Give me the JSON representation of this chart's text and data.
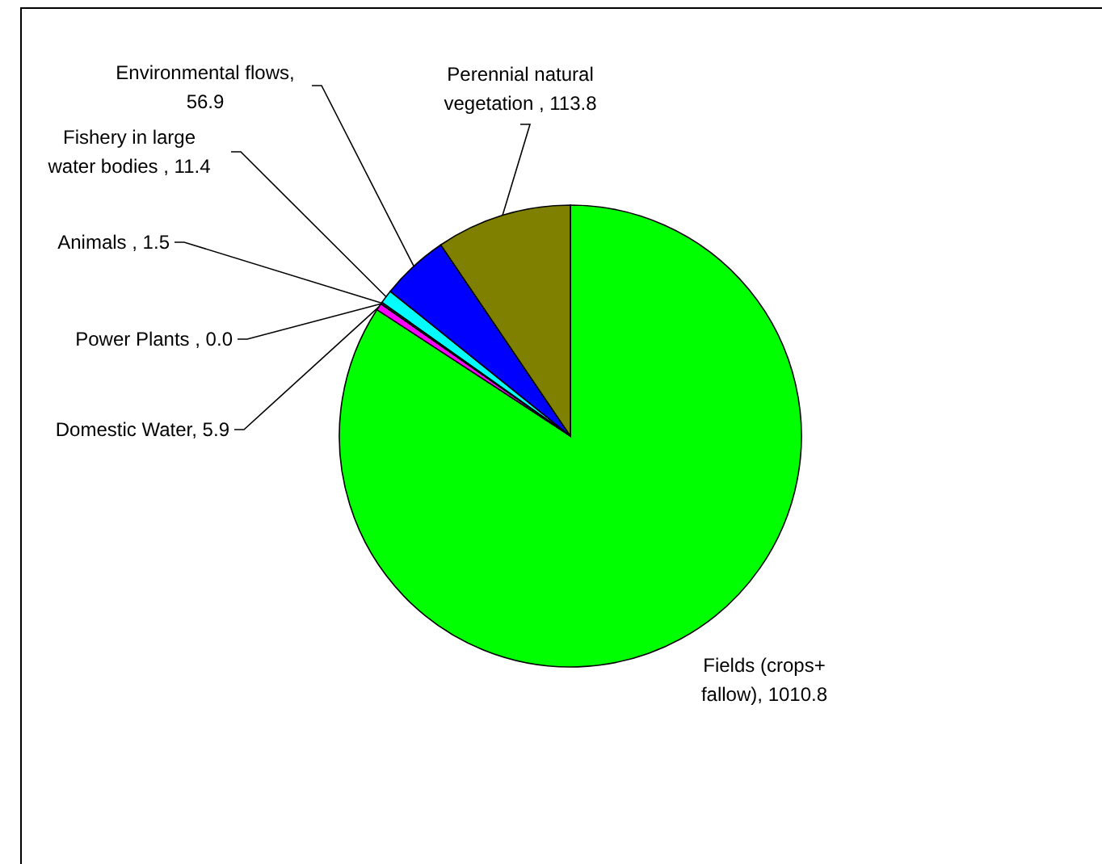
{
  "chart_data": {
    "type": "pie",
    "categories": [
      "Fields (crops+ fallow)",
      "Domestic Water",
      "Power Plants ",
      "Animals ",
      "Fishery in large water bodies ",
      "Environmental flows",
      "Perennial natural vegetation "
    ],
    "values": [
      1010.8,
      5.9,
      0.0,
      1.5,
      11.4,
      56.9,
      113.8
    ],
    "value_labels": [
      ", 1010.8",
      ", 5.9",
      ", 0.0",
      ", 1.5",
      ", 11.4",
      ", 56.9",
      ", 113.8"
    ],
    "colors": [
      "#00ff00",
      "#ff00ff",
      "#ffff00",
      "#800080",
      "#00ffff",
      "#0000ff",
      "#808000"
    ]
  }
}
